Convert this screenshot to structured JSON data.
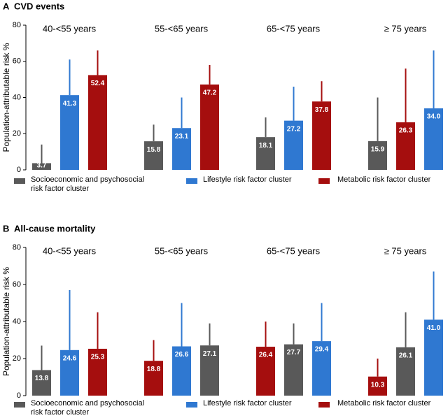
{
  "chart_data": [
    {
      "type": "bar",
      "label": "A",
      "title": "CVD events",
      "ylabel": "Population-attributable risk %",
      "ylim": [
        0,
        80
      ],
      "yticks": [
        0,
        20,
        40,
        60,
        80
      ],
      "series": [
        {
          "name": "Socioeconomic and psychosocial risk factor cluster",
          "color": "#595959"
        },
        {
          "name": "Lifestyle risk factor cluster",
          "color": "#2f78d1"
        },
        {
          "name": "Metabolic risk factor cluster",
          "color": "#a50e0e"
        }
      ],
      "categories": [
        "40-<55 years",
        "55-<65 years",
        "65-<75 years",
        "≥ 75 years"
      ],
      "groups": [
        {
          "bars": [
            {
              "color": "#595959",
              "value": 3.7,
              "upper": 14
            },
            {
              "color": "#2f78d1",
              "value": 41.3,
              "upper": 61
            },
            {
              "color": "#a50e0e",
              "value": 52.4,
              "upper": 66
            }
          ]
        },
        {
          "bars": [
            {
              "color": "#595959",
              "value": 15.8,
              "upper": 25
            },
            {
              "color": "#2f78d1",
              "value": 23.1,
              "upper": 40
            },
            {
              "color": "#a50e0e",
              "value": 47.2,
              "upper": 58
            }
          ]
        },
        {
          "bars": [
            {
              "color": "#595959",
              "value": 18.1,
              "upper": 29
            },
            {
              "color": "#2f78d1",
              "value": 27.2,
              "upper": 46
            },
            {
              "color": "#a50e0e",
              "value": 37.8,
              "upper": 49
            }
          ]
        },
        {
          "bars": [
            {
              "color": "#595959",
              "value": 15.9,
              "upper": 40
            },
            {
              "color": "#a50e0e",
              "value": 26.3,
              "upper": 56
            },
            {
              "color": "#2f78d1",
              "value": 34.0,
              "value_label": "34.0",
              "upper": 66
            }
          ]
        }
      ]
    },
    {
      "type": "bar",
      "label": "B",
      "title": "All-cause mortality",
      "ylabel": "Population-attributable risk %",
      "ylim": [
        0,
        80
      ],
      "yticks": [
        0,
        20,
        40,
        60,
        80
      ],
      "series": [
        {
          "name": "Socioeconomic and psychosocial risk factor cluster",
          "color": "#595959"
        },
        {
          "name": "Lifestyle risk factor cluster",
          "color": "#2f78d1"
        },
        {
          "name": "Metabolic risk factor cluster",
          "color": "#a50e0e"
        }
      ],
      "categories": [
        "40-<55 years",
        "55-<65 years",
        "65-<75 years",
        "≥ 75 years"
      ],
      "groups": [
        {
          "bars": [
            {
              "color": "#595959",
              "value": 13.8,
              "upper": 27
            },
            {
              "color": "#2f78d1",
              "value": 24.6,
              "upper": 57
            },
            {
              "color": "#a50e0e",
              "value": 25.3,
              "upper": 45
            }
          ]
        },
        {
          "bars": [
            {
              "color": "#a50e0e",
              "value": 18.8,
              "upper": 30
            },
            {
              "color": "#2f78d1",
              "value": 26.6,
              "upper": 50
            },
            {
              "color": "#595959",
              "value": 27.1,
              "upper": 39
            }
          ]
        },
        {
          "bars": [
            {
              "color": "#a50e0e",
              "value": 26.4,
              "upper": 40
            },
            {
              "color": "#595959",
              "value": 27.7,
              "upper": 39
            },
            {
              "color": "#2f78d1",
              "value": 29.4,
              "upper": 50
            }
          ]
        },
        {
          "bars": [
            {
              "color": "#a50e0e",
              "value": 10.3,
              "upper": 20
            },
            {
              "color": "#595959",
              "value": 26.1,
              "upper": 45
            },
            {
              "color": "#2f78d1",
              "value": 41.0,
              "value_label": "41.0",
              "upper": 67
            }
          ]
        }
      ]
    }
  ]
}
